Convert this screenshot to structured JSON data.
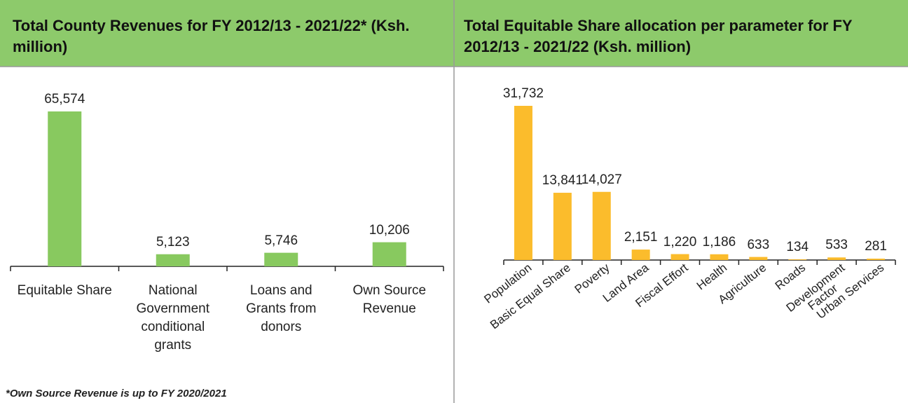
{
  "chart_data": [
    {
      "type": "bar",
      "title": "Total County Revenues for FY 2012/13 - 2021/22* (Ksh. million)",
      "categories": [
        "Equitable Share",
        "National Government conditional grants",
        "Loans and Grants from donors",
        "Own Source Revenue"
      ],
      "values": [
        65574,
        5123,
        5746,
        10206
      ],
      "value_labels": [
        "65,574",
        "5,123",
        "5,746",
        "10,206"
      ],
      "color": "#88c95f",
      "note": "*Own Source Revenue is up to FY 2020/2021"
    },
    {
      "type": "bar",
      "title": "Total Equitable Share allocation per parameter for FY 2012/13 - 2021/22 (Ksh. million)",
      "categories": [
        "Population",
        "Basic Equal Share",
        "Poverty",
        "Land Area",
        "Fiscal Effort",
        "Health",
        "Agriculture",
        "Roads",
        "Development\nFactor",
        "Urban Services"
      ],
      "values": [
        31732,
        13841,
        14027,
        2151,
        1220,
        1186,
        633,
        134,
        533,
        281
      ],
      "value_labels": [
        "31,732",
        "13,841",
        "14,027",
        "2,151",
        "1,220",
        "1,186",
        "633",
        "134",
        "533",
        "281"
      ],
      "color": "#fbbc2c"
    }
  ]
}
